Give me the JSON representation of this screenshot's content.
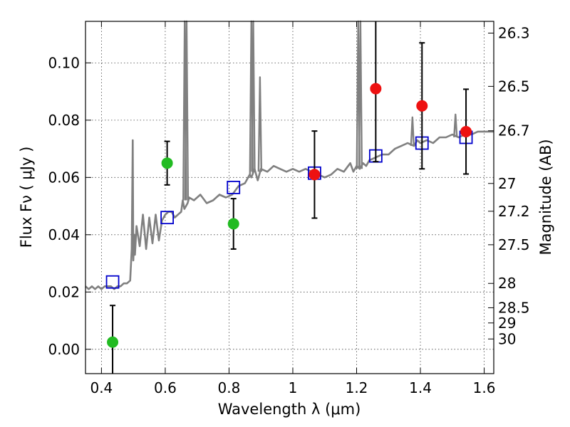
{
  "chart_data": {
    "type": "scatter",
    "xlabel": "Wavelength  λ (μm)",
    "ylabel": "Flux  Fν  ( μJy )",
    "y2label": "Magnitude (AB)",
    "xlim": [
      0.35,
      1.63
    ],
    "ylim": [
      -0.0085,
      0.1145
    ],
    "grid": true,
    "x_ticks": [
      0.4,
      0.6,
      0.8,
      1.0,
      1.2,
      1.4,
      1.6
    ],
    "x_tick_labels": [
      "0.4",
      "0.6",
      "0.8",
      "1",
      "1.2",
      "1.4",
      "1.6"
    ],
    "y_ticks": [
      0.0,
      0.02,
      0.04,
      0.06,
      0.08,
      0.1
    ],
    "y_tick_labels": [
      "0.00",
      "0.02",
      "0.04",
      "0.06",
      "0.08",
      "0.10"
    ],
    "mag_ticks": [
      {
        "label": "26.3",
        "flux": 0.1104
      },
      {
        "label": "26.5",
        "flux": 0.0918
      },
      {
        "label": "26.7",
        "flux": 0.0763
      },
      {
        "label": "27",
        "flux": 0.0579
      },
      {
        "label": "27.2",
        "flux": 0.0482
      },
      {
        "label": "27.5",
        "flux": 0.0365
      },
      {
        "label": "28",
        "flux": 0.023
      },
      {
        "label": "28.5",
        "flux": 0.0145
      },
      {
        "label": "29",
        "flux": 0.0092
      },
      {
        "label": "30",
        "flux": 0.0036
      }
    ],
    "series": [
      {
        "name": "model_spectrum",
        "style": "line",
        "color": "#808080",
        "x": [
          0.35,
          0.36,
          0.37,
          0.38,
          0.39,
          0.4,
          0.41,
          0.42,
          0.43,
          0.44,
          0.45,
          0.46,
          0.47,
          0.48,
          0.49,
          0.495,
          0.498,
          0.5,
          0.503,
          0.505,
          0.51,
          0.52,
          0.53,
          0.54,
          0.55,
          0.56,
          0.57,
          0.58,
          0.59,
          0.6,
          0.61,
          0.62,
          0.63,
          0.64,
          0.65,
          0.655,
          0.66,
          0.67,
          0.675,
          0.69,
          0.71,
          0.73,
          0.75,
          0.77,
          0.79,
          0.81,
          0.83,
          0.85,
          0.86,
          0.865,
          0.87,
          0.88,
          0.89,
          0.895,
          0.9,
          0.92,
          0.94,
          0.96,
          0.98,
          1.0,
          1.02,
          1.04,
          1.06,
          1.08,
          1.1,
          1.12,
          1.14,
          1.16,
          1.18,
          1.19,
          1.2,
          1.21,
          1.22,
          1.23,
          1.24,
          1.26,
          1.28,
          1.3,
          1.32,
          1.34,
          1.36,
          1.38,
          1.39,
          1.4,
          1.42,
          1.44,
          1.46,
          1.48,
          1.5,
          1.52,
          1.54,
          1.56,
          1.58,
          1.6,
          1.63
        ],
        "y": [
          0.022,
          0.021,
          0.022,
          0.021,
          0.022,
          0.021,
          0.022,
          0.022,
          0.022,
          0.021,
          0.022,
          0.022,
          0.023,
          0.023,
          0.024,
          0.035,
          0.073,
          0.031,
          0.04,
          0.033,
          0.043,
          0.036,
          0.047,
          0.035,
          0.046,
          0.037,
          0.047,
          0.038,
          0.045,
          0.047,
          0.048,
          0.048,
          0.046,
          0.047,
          0.048,
          0.052,
          0.049,
          0.051,
          0.053,
          0.052,
          0.054,
          0.051,
          0.052,
          0.054,
          0.053,
          0.054,
          0.057,
          0.058,
          0.06,
          0.061,
          0.06,
          0.063,
          0.059,
          0.061,
          0.063,
          0.062,
          0.064,
          0.063,
          0.062,
          0.063,
          0.062,
          0.063,
          0.062,
          0.061,
          0.06,
          0.061,
          0.063,
          0.062,
          0.065,
          0.062,
          0.064,
          0.063,
          0.065,
          0.064,
          0.066,
          0.067,
          0.068,
          0.068,
          0.07,
          0.071,
          0.072,
          0.071,
          0.073,
          0.072,
          0.073,
          0.072,
          0.074,
          0.074,
          0.075,
          0.074,
          0.075,
          0.075,
          0.076,
          0.076,
          0.076
        ]
      },
      {
        "name": "model_emission_lines",
        "style": "spikes",
        "color": "#808080",
        "lines": [
          {
            "x": 0.661,
            "base": 0.052,
            "peak": 0.1145
          },
          {
            "x": 0.667,
            "base": 0.052,
            "peak": 0.1145
          },
          {
            "x": 0.87,
            "base": 0.061,
            "peak": 0.1145
          },
          {
            "x": 0.876,
            "base": 0.062,
            "peak": 0.1145
          },
          {
            "x": 0.897,
            "base": 0.062,
            "peak": 0.095
          },
          {
            "x": 1.205,
            "base": 0.063,
            "peak": 0.1145
          },
          {
            "x": 1.212,
            "base": 0.063,
            "peak": 0.1145
          },
          {
            "x": 1.375,
            "base": 0.071,
            "peak": 0.081
          },
          {
            "x": 1.51,
            "base": 0.074,
            "peak": 0.082
          }
        ]
      },
      {
        "name": "model_band_flux",
        "style": "open-square",
        "color": "#0000cc",
        "x": [
          0.435,
          0.606,
          0.814,
          1.068,
          1.26,
          1.405,
          1.543
        ],
        "y": [
          0.0235,
          0.046,
          0.0565,
          0.0615,
          0.0675,
          0.072,
          0.074
        ]
      },
      {
        "name": "observed_hst_optical",
        "style": "filled-circle",
        "color": "#22bb22",
        "x": [
          0.435,
          0.606,
          0.814
        ],
        "y": [
          0.0025,
          0.065,
          0.0438
        ],
        "yerr": [
          0.0128,
          0.0076,
          0.0088
        ]
      },
      {
        "name": "observed_hst_nir",
        "style": "filled-circle",
        "color": "#ee1111",
        "x": [
          1.068,
          1.26,
          1.405,
          1.543
        ],
        "y": [
          0.061,
          0.091,
          0.085,
          0.076
        ],
        "yerr": [
          0.0152,
          0.0255,
          0.022,
          0.0148
        ]
      }
    ]
  }
}
